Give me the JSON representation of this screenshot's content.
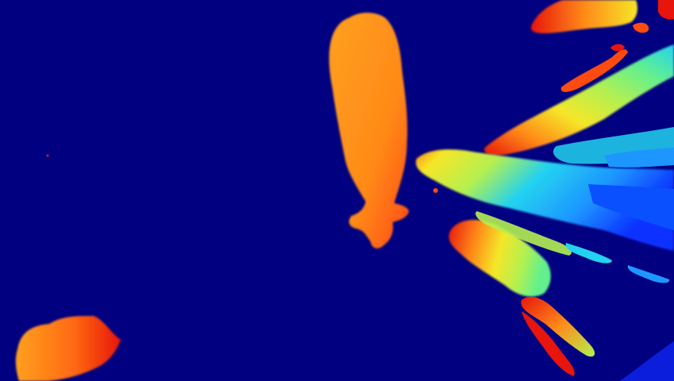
{
  "image": {
    "kind": "depth-map",
    "colormap": "jet",
    "background_color": "#000080",
    "colors": {
      "near_red": "#e8150c",
      "orange": "#ff7a14",
      "amber": "#ffa01e",
      "yellow": "#f5e628",
      "green_yellow": "#b4f050",
      "green": "#64f08c",
      "cyan": "#22d2f0",
      "sky_blue": "#1e96ff",
      "blue": "#0a50ff",
      "deep_blue": "#0a1edc"
    },
    "visible_text": []
  }
}
